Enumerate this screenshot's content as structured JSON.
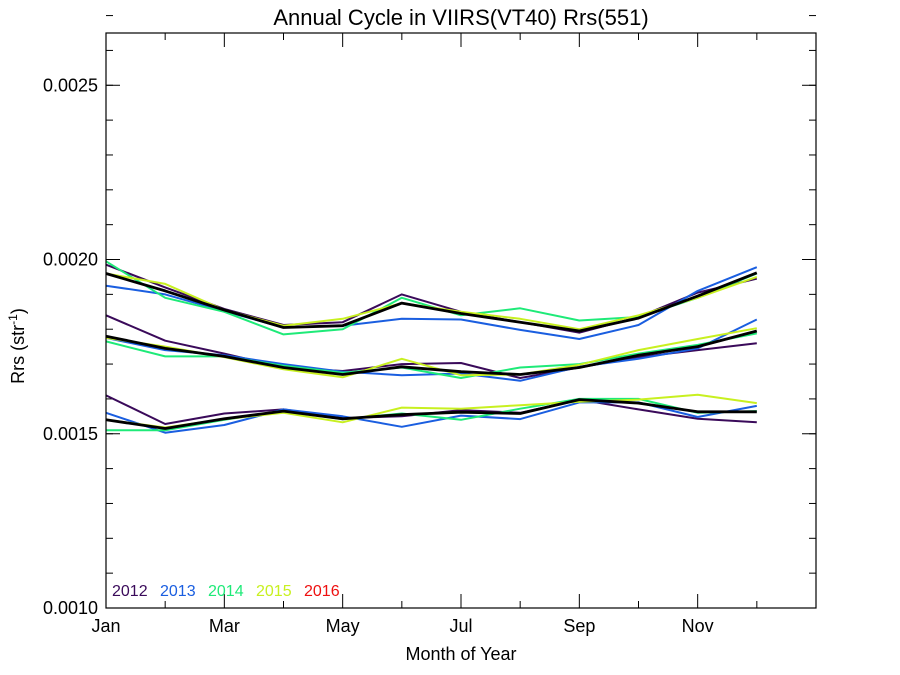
{
  "chart_data": {
    "type": "line",
    "title": "Annual Cycle in VIIRS(VT40) Rrs(551)",
    "xlabel": "Month of Year",
    "ylabel_base": "Rrs (str",
    "ylabel_sup": "-1",
    "ylabel_end": ")",
    "xlim": [
      1,
      13
    ],
    "ylim": [
      0.001,
      0.00265
    ],
    "x_ticks": [
      {
        "value": 1,
        "label": "Jan"
      },
      {
        "value": 3,
        "label": "Mar"
      },
      {
        "value": 5,
        "label": "May"
      },
      {
        "value": 7,
        "label": "Jul"
      },
      {
        "value": 9,
        "label": "Sep"
      },
      {
        "value": 11,
        "label": "Nov"
      }
    ],
    "x_minor_ticks": [
      2,
      4,
      6,
      8,
      10,
      12
    ],
    "y_ticks": [
      {
        "value": 0.001,
        "label": "0.0010"
      },
      {
        "value": 0.0015,
        "label": "0.0015"
      },
      {
        "value": 0.002,
        "label": "0.0020"
      },
      {
        "value": 0.0025,
        "label": "0.0025"
      }
    ],
    "y_minor_step": 0.0001,
    "x": [
      1,
      2,
      3,
      4,
      5,
      6,
      7,
      8,
      9,
      10,
      11,
      12
    ],
    "legend": [
      {
        "label": "2012",
        "color": "#3a0a5a"
      },
      {
        "label": "2013",
        "color": "#1a5ee0"
      },
      {
        "label": "2014",
        "color": "#1eea78"
      },
      {
        "label": "2015",
        "color": "#c8f020"
      },
      {
        "label": "2016",
        "color": "#ee1010"
      }
    ],
    "series": [
      {
        "year": "2012",
        "group": "upper",
        "color": "#3a0a5a",
        "values": [
          0.001985,
          0.00192,
          0.001858,
          0.001812,
          0.00182,
          0.0019,
          0.00185,
          0.00182,
          0.00179,
          0.001835,
          0.001905,
          0.001945
        ]
      },
      {
        "year": "2013",
        "group": "upper",
        "color": "#1a5ee0",
        "values": [
          0.001925,
          0.0019,
          0.001852,
          0.001805,
          0.00181,
          0.00183,
          0.001828,
          0.001798,
          0.001772,
          0.001812,
          0.00191,
          0.001978
        ]
      },
      {
        "year": "2014",
        "group": "upper",
        "color": "#1eea78",
        "values": [
          0.001995,
          0.00189,
          0.00185,
          0.001785,
          0.0018,
          0.00189,
          0.00184,
          0.00186,
          0.001825,
          0.001835,
          0.00189,
          0.00196
        ]
      },
      {
        "year": "2015",
        "group": "upper",
        "color": "#c8f020",
        "values": [
          0.00196,
          0.00193,
          0.001855,
          0.00181,
          0.00183,
          0.001875,
          0.00185,
          0.00183,
          0.0018,
          0.00184,
          0.00189,
          0.00195
        ]
      },
      {
        "year": "mean",
        "group": "upper",
        "color": "#000000",
        "values": [
          0.00196,
          0.00191,
          0.001855,
          0.001805,
          0.00181,
          0.001875,
          0.001845,
          0.00182,
          0.001795,
          0.001832,
          0.001895,
          0.001962
        ]
      },
      {
        "year": "2012",
        "group": "middle",
        "color": "#3a0a5a",
        "values": [
          0.00184,
          0.001767,
          0.00173,
          0.00169,
          0.00168,
          0.0017,
          0.001703,
          0.00166,
          0.00169,
          0.00172,
          0.00174,
          0.00176
        ]
      },
      {
        "year": "2013",
        "group": "middle",
        "color": "#1a5ee0",
        "values": [
          0.001775,
          0.00174,
          0.001725,
          0.0017,
          0.001678,
          0.001668,
          0.001673,
          0.001652,
          0.001692,
          0.001715,
          0.001745,
          0.001828
        ]
      },
      {
        "year": "2014",
        "group": "middle",
        "color": "#1eea78",
        "values": [
          0.001765,
          0.001722,
          0.001722,
          0.001695,
          0.001675,
          0.00169,
          0.00166,
          0.00169,
          0.0017,
          0.00173,
          0.001755,
          0.001788
        ]
      },
      {
        "year": "2015",
        "group": "middle",
        "color": "#c8f020",
        "values": [
          0.001775,
          0.00175,
          0.00172,
          0.001685,
          0.001662,
          0.001715,
          0.001668,
          0.00167,
          0.001698,
          0.00174,
          0.001772,
          0.001803
        ]
      },
      {
        "year": "mean",
        "group": "middle",
        "color": "#000000",
        "values": [
          0.00178,
          0.001745,
          0.001722,
          0.00169,
          0.00167,
          0.001692,
          0.001678,
          0.00167,
          0.00169,
          0.001725,
          0.00175,
          0.001795
        ]
      },
      {
        "year": "2012",
        "group": "lower",
        "color": "#3a0a5a",
        "values": [
          0.00161,
          0.001528,
          0.001558,
          0.00157,
          0.001545,
          0.00155,
          0.001568,
          0.00156,
          0.001598,
          0.00157,
          0.001543,
          0.001533
        ]
      },
      {
        "year": "2013",
        "group": "lower",
        "color": "#1a5ee0",
        "values": [
          0.00156,
          0.001503,
          0.001525,
          0.00157,
          0.00155,
          0.00152,
          0.001552,
          0.001542,
          0.00159,
          0.00159,
          0.001548,
          0.00158
        ]
      },
      {
        "year": "2014",
        "group": "lower",
        "color": "#1eea78",
        "values": [
          0.00151,
          0.00151,
          0.00154,
          0.001565,
          0.001542,
          0.001558,
          0.00154,
          0.001572,
          0.0016,
          0.0016,
          0.00156,
          0.001565
        ]
      },
      {
        "year": "2015",
        "group": "lower",
        "color": "#c8f020",
        "values": [
          0.00154,
          0.001518,
          0.001542,
          0.00156,
          0.001533,
          0.001575,
          0.001572,
          0.001582,
          0.001592,
          0.001598,
          0.001612,
          0.001588
        ]
      },
      {
        "year": "mean",
        "group": "lower",
        "color": "#000000",
        "values": [
          0.00154,
          0.001515,
          0.001543,
          0.001565,
          0.001543,
          0.001555,
          0.001562,
          0.001558,
          0.001598,
          0.001588,
          0.001563,
          0.001563
        ]
      }
    ]
  }
}
